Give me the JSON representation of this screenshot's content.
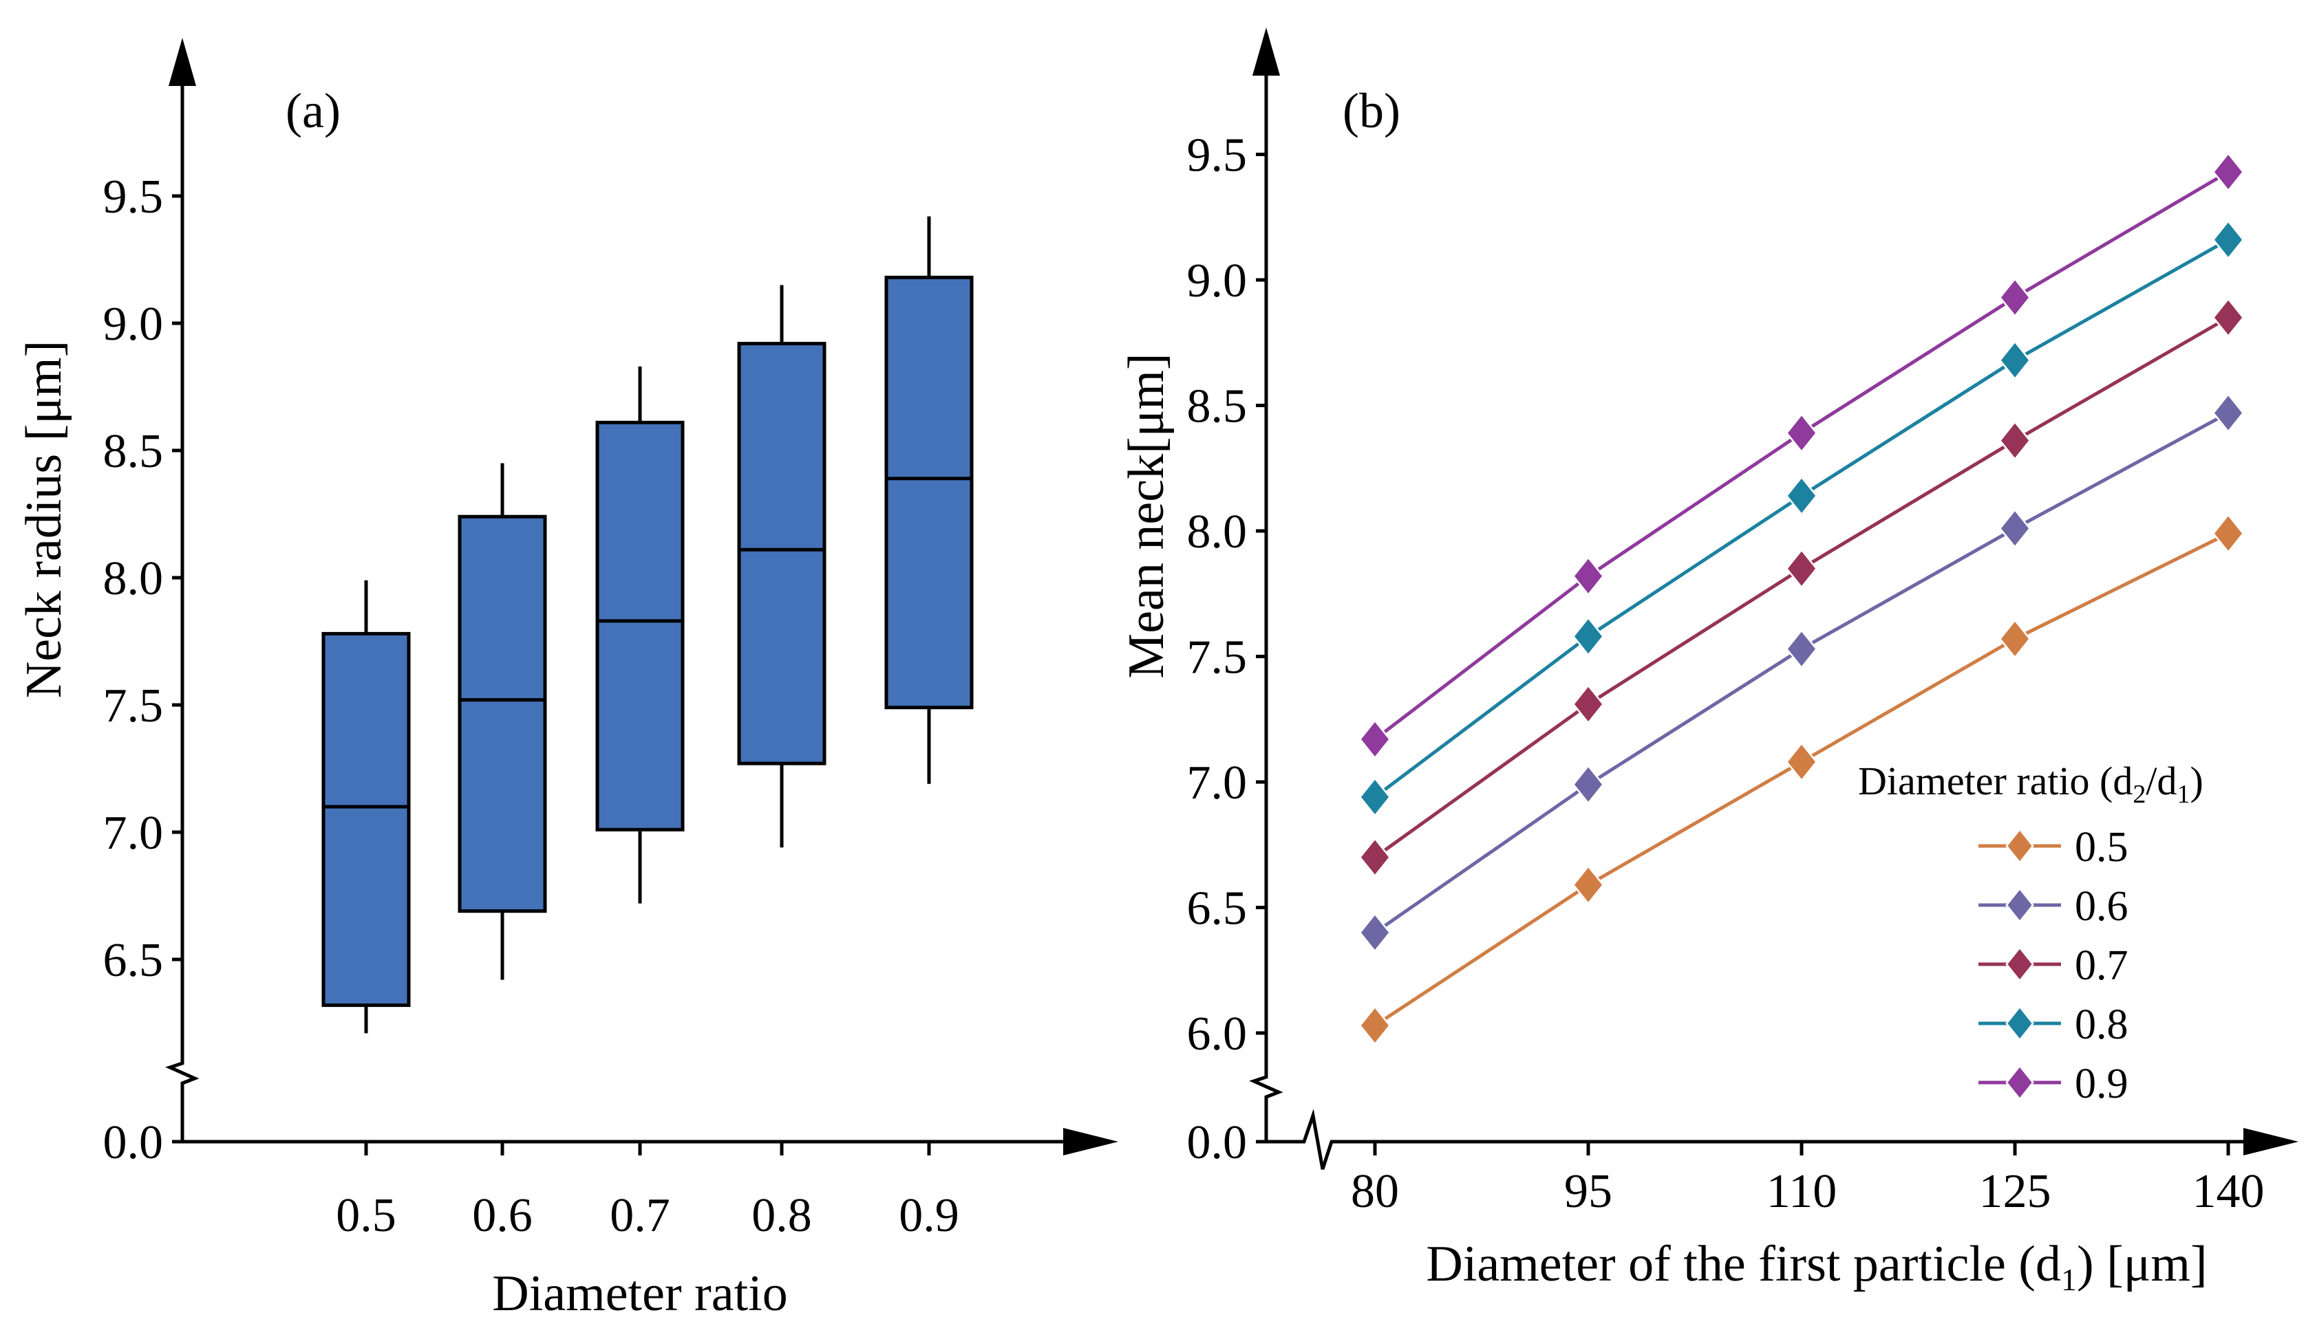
{
  "chart_data": [
    {
      "type": "box",
      "panel": "(a)",
      "title": "",
      "xlabel": "Diameter ratio",
      "ylabel": "Neck radius [μm]",
      "y_origin_label": "0.0",
      "y_break": true,
      "yticks": [
        "6.5",
        "7.0",
        "7.5",
        "8.0",
        "8.5",
        "9.0",
        "9.5"
      ],
      "ylim": [
        6.0,
        9.75
      ],
      "categories": [
        "0.5",
        "0.6",
        "0.7",
        "0.8",
        "0.9"
      ],
      "boxes": [
        {
          "whisker_low": 6.21,
          "q1": 6.32,
          "median": 7.1,
          "q3": 7.78,
          "whisker_high": 7.99
        },
        {
          "whisker_low": 6.42,
          "q1": 6.69,
          "median": 7.52,
          "q3": 8.24,
          "whisker_high": 8.45
        },
        {
          "whisker_low": 6.72,
          "q1": 7.01,
          "median": 7.83,
          "q3": 8.61,
          "whisker_high": 8.83
        },
        {
          "whisker_low": 6.94,
          "q1": 7.27,
          "median": 8.11,
          "q3": 8.92,
          "whisker_high": 9.15
        },
        {
          "whisker_low": 7.19,
          "q1": 7.49,
          "median": 8.39,
          "q3": 9.18,
          "whisker_high": 9.42
        }
      ],
      "box_color": "#4472b8"
    },
    {
      "type": "line",
      "panel": "(b)",
      "title": "",
      "xlabel_main": "Diameter of the first particle (d",
      "xlabel_sub": "1",
      "xlabel_tail": ") [μm]",
      "ylabel": "Mean neck[μm]",
      "y_origin_label": "0.0",
      "y_break": true,
      "x_break": true,
      "x": [
        80,
        95,
        110,
        125,
        140
      ],
      "xticks": [
        "80",
        "95",
        "110",
        "125",
        "140"
      ],
      "yticks": [
        "6.0",
        "6.5",
        "7.0",
        "7.5",
        "8.0",
        "8.5",
        "9.0",
        "9.5"
      ],
      "ylim": [
        5.8,
        9.75
      ],
      "marker": "diamond",
      "legend": {
        "title_main": "Diameter ratio (d",
        "title_sub1": "2",
        "title_mid": "/d",
        "title_sub2": "1",
        "title_tail": ")",
        "position": "bottom-right"
      },
      "series": [
        {
          "name": "0.5",
          "color": "#d07d44",
          "values": [
            6.03,
            6.59,
            7.08,
            7.57,
            7.99
          ]
        },
        {
          "name": "0.6",
          "color": "#6e67a5",
          "values": [
            6.4,
            6.99,
            7.53,
            8.01,
            8.47
          ]
        },
        {
          "name": "0.7",
          "color": "#963356",
          "values": [
            6.7,
            7.31,
            7.85,
            8.36,
            8.85
          ]
        },
        {
          "name": "0.8",
          "color": "#1c82a0",
          "values": [
            6.94,
            7.58,
            8.14,
            8.68,
            9.16
          ]
        },
        {
          "name": "0.9",
          "color": "#8f3a9c",
          "values": [
            7.17,
            7.82,
            8.39,
            8.93,
            9.43
          ]
        }
      ]
    }
  ]
}
